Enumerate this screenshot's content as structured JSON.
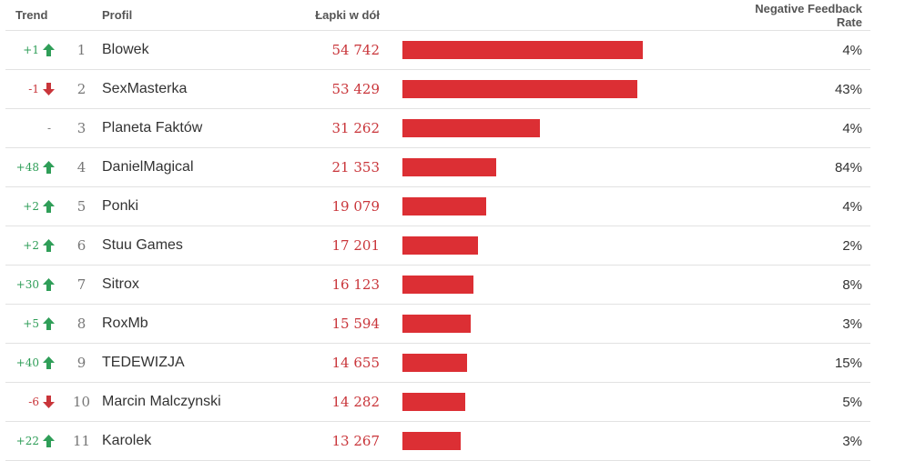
{
  "header": {
    "trend": "Trend",
    "profil": "Profil",
    "value": "Łapki w dół",
    "rate": "Negative Feedback Rate"
  },
  "scale_max": 54742,
  "colors": {
    "up": "#2f9e58",
    "down": "#c9353a",
    "bar": "#dc2f34"
  },
  "rows": [
    {
      "trend": "+1",
      "dir": "up",
      "rank": "1",
      "name": "Blowek",
      "value_label": "54 742",
      "value": 54742,
      "rate": "4%"
    },
    {
      "trend": "-1",
      "dir": "down",
      "rank": "2",
      "name": "SexMasterka",
      "value_label": "53 429",
      "value": 53429,
      "rate": "43%"
    },
    {
      "trend": "-",
      "dir": "none",
      "rank": "3",
      "name": "Planeta Faktów",
      "value_label": "31 262",
      "value": 31262,
      "rate": "4%"
    },
    {
      "trend": "+48",
      "dir": "up",
      "rank": "4",
      "name": "DanielMagical",
      "value_label": "21 353",
      "value": 21353,
      "rate": "84%"
    },
    {
      "trend": "+2",
      "dir": "up",
      "rank": "5",
      "name": "Ponki",
      "value_label": "19 079",
      "value": 19079,
      "rate": "4%"
    },
    {
      "trend": "+2",
      "dir": "up",
      "rank": "6",
      "name": "Stuu Games",
      "value_label": "17 201",
      "value": 17201,
      "rate": "2%"
    },
    {
      "trend": "+30",
      "dir": "up",
      "rank": "7",
      "name": "Sitrox",
      "value_label": "16 123",
      "value": 16123,
      "rate": "8%"
    },
    {
      "trend": "+5",
      "dir": "up",
      "rank": "8",
      "name": "RoxMb",
      "value_label": "15 594",
      "value": 15594,
      "rate": "3%"
    },
    {
      "trend": "+40",
      "dir": "up",
      "rank": "9",
      "name": "TEDEWIZJA",
      "value_label": "14 655",
      "value": 14655,
      "rate": "15%"
    },
    {
      "trend": "-6",
      "dir": "down",
      "rank": "10",
      "name": "Marcin Malczynski",
      "value_label": "14 282",
      "value": 14282,
      "rate": "5%"
    },
    {
      "trend": "+22",
      "dir": "up",
      "rank": "11",
      "name": "Karolek",
      "value_label": "13 267",
      "value": 13267,
      "rate": "3%"
    }
  ]
}
